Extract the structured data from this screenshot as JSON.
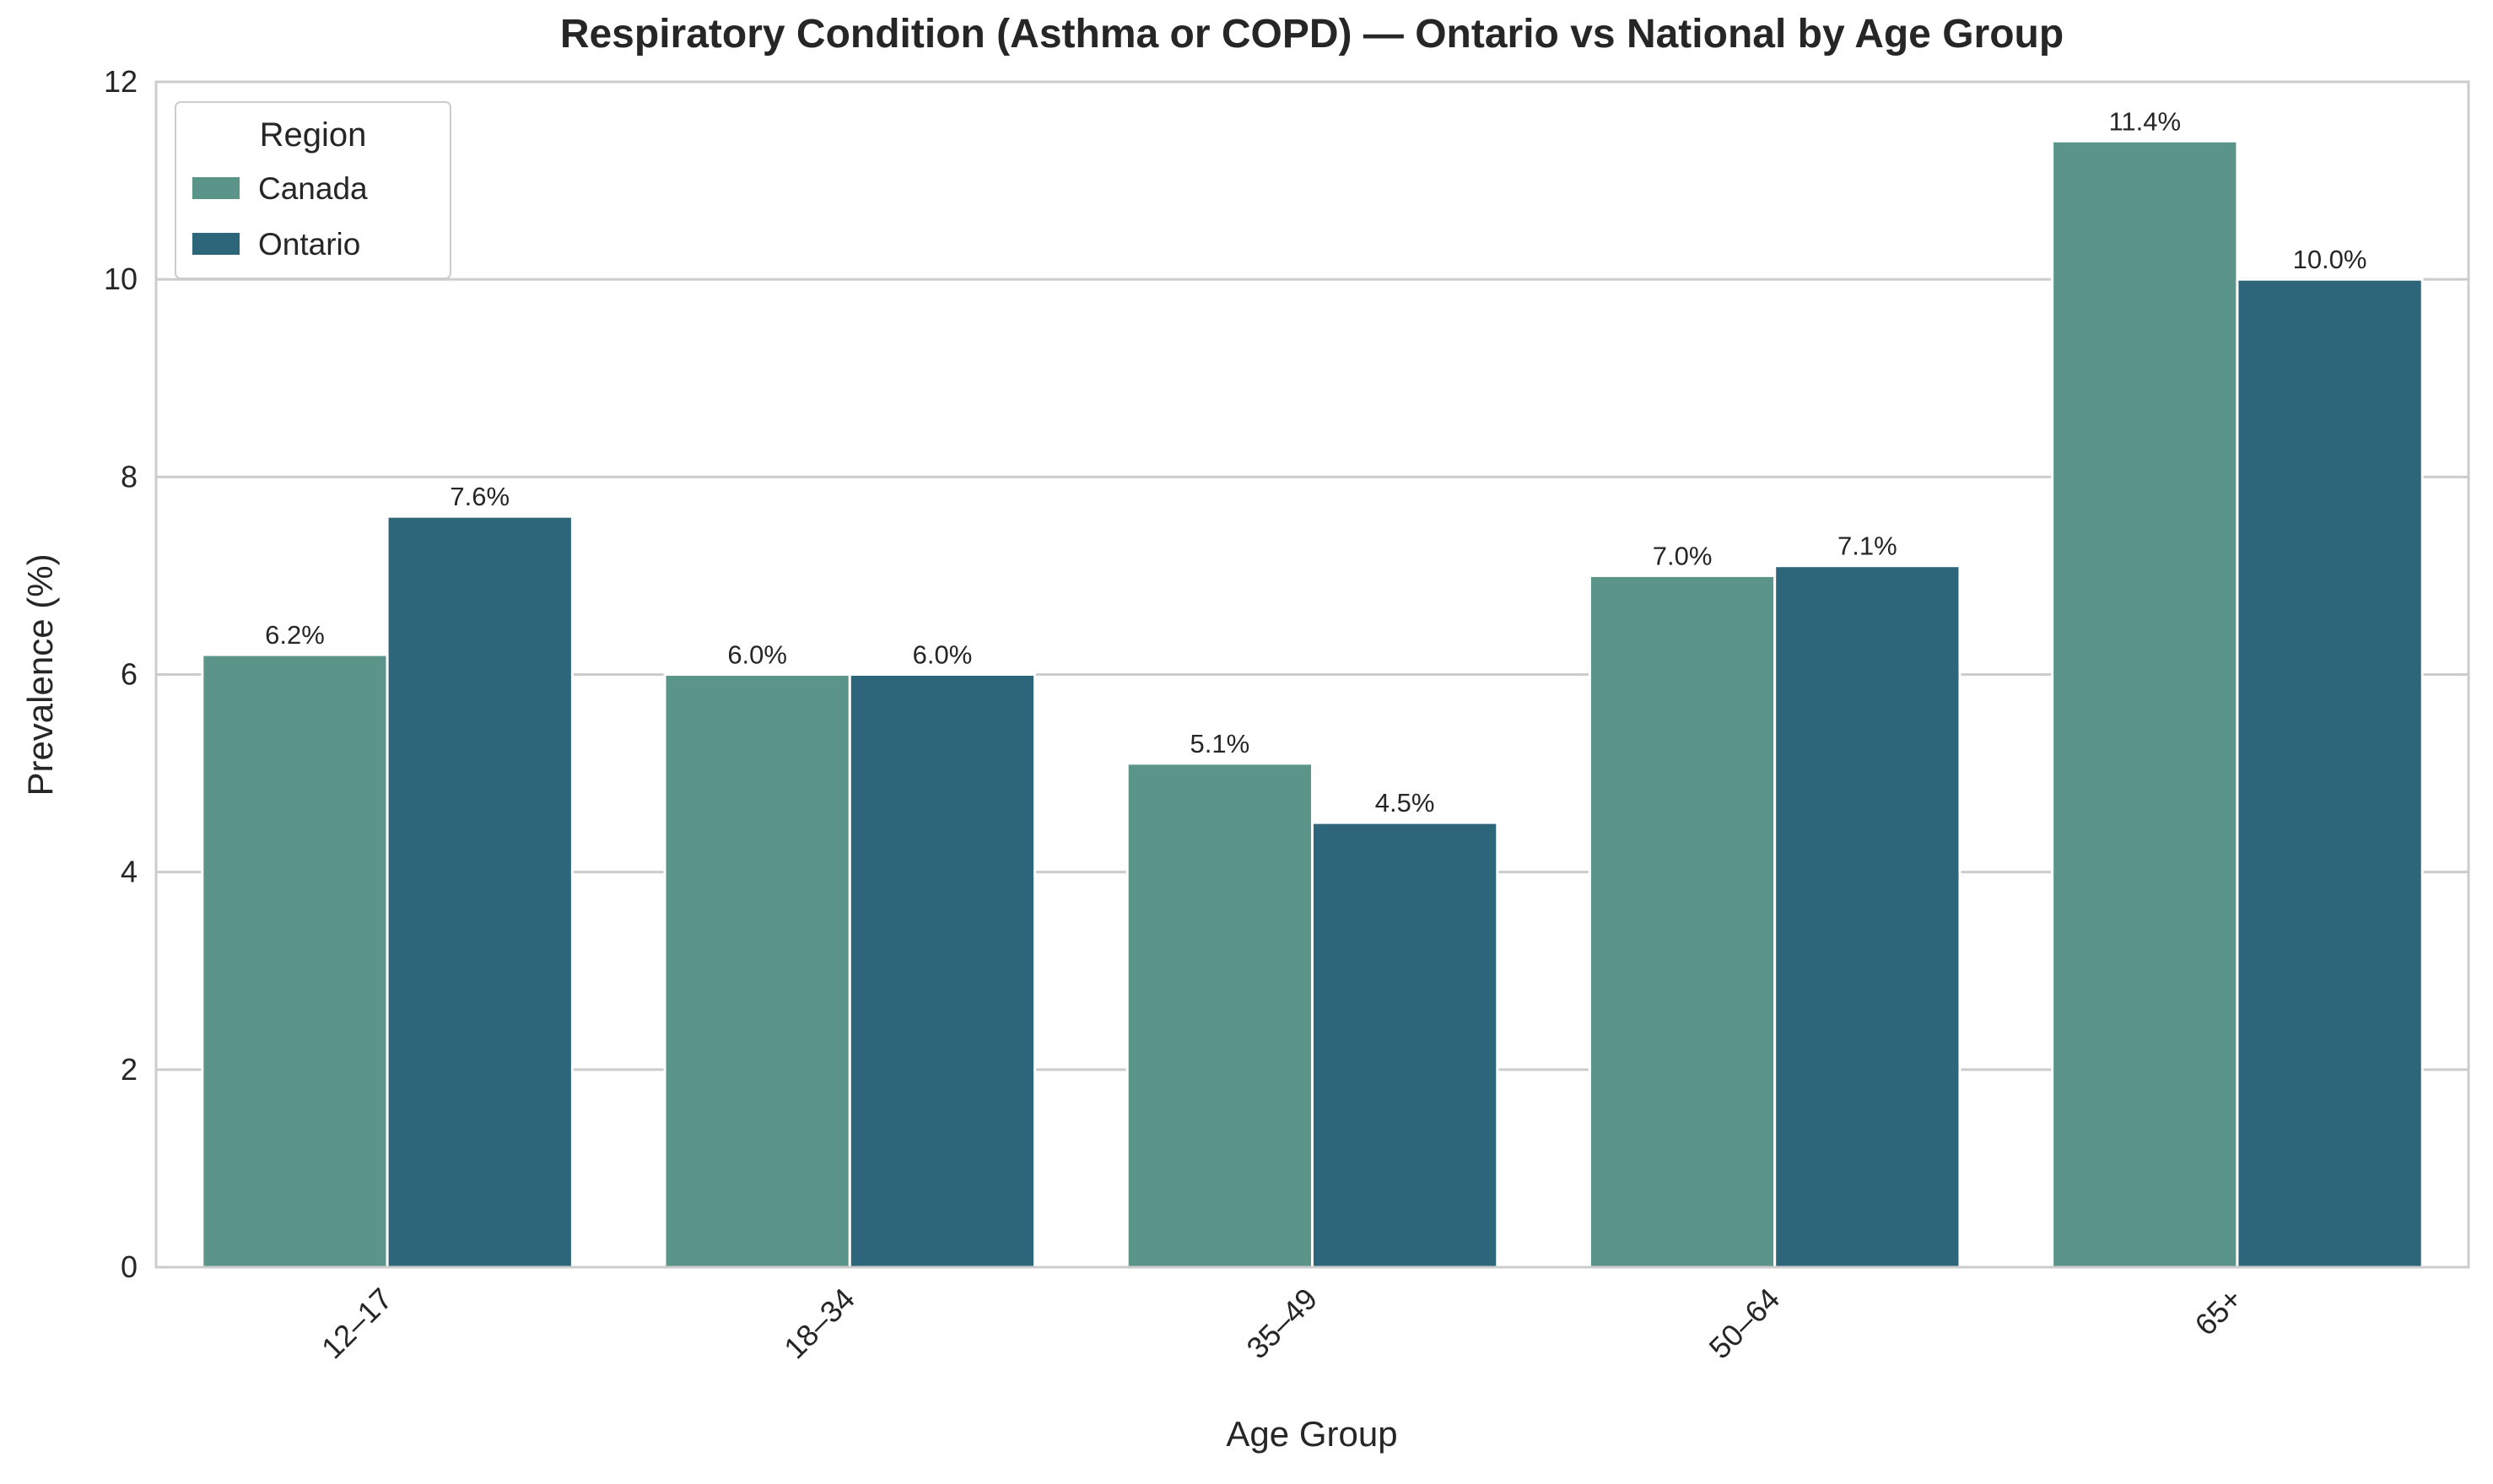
{
  "chart_data": {
    "type": "bar",
    "title": "Respiratory Condition (Asthma or COPD) — Ontario vs National by Age Group",
    "xlabel": "Age Group",
    "ylabel": "Prevalence (%)",
    "categories": [
      "12–17",
      "18–34",
      "35–49",
      "50–64",
      "65+"
    ],
    "series": [
      {
        "name": "Canada",
        "color": "#5b9589",
        "values": [
          6.2,
          6.0,
          5.1,
          7.0,
          11.4
        ],
        "labels": [
          "6.2%",
          "6.0%",
          "5.1%",
          "7.0%",
          "11.4%"
        ]
      },
      {
        "name": "Ontario",
        "color": "#2d667b",
        "values": [
          7.6,
          6.0,
          4.5,
          7.1,
          10.0
        ],
        "labels": [
          "7.6%",
          "6.0%",
          "4.5%",
          "7.1%",
          "10.0%"
        ]
      }
    ],
    "ylim": [
      0,
      12
    ],
    "yticks": [
      "0",
      "2",
      "4",
      "6",
      "8",
      "10",
      "12"
    ],
    "grid": true,
    "legend": {
      "title": "Region",
      "placement": "top-left"
    }
  }
}
